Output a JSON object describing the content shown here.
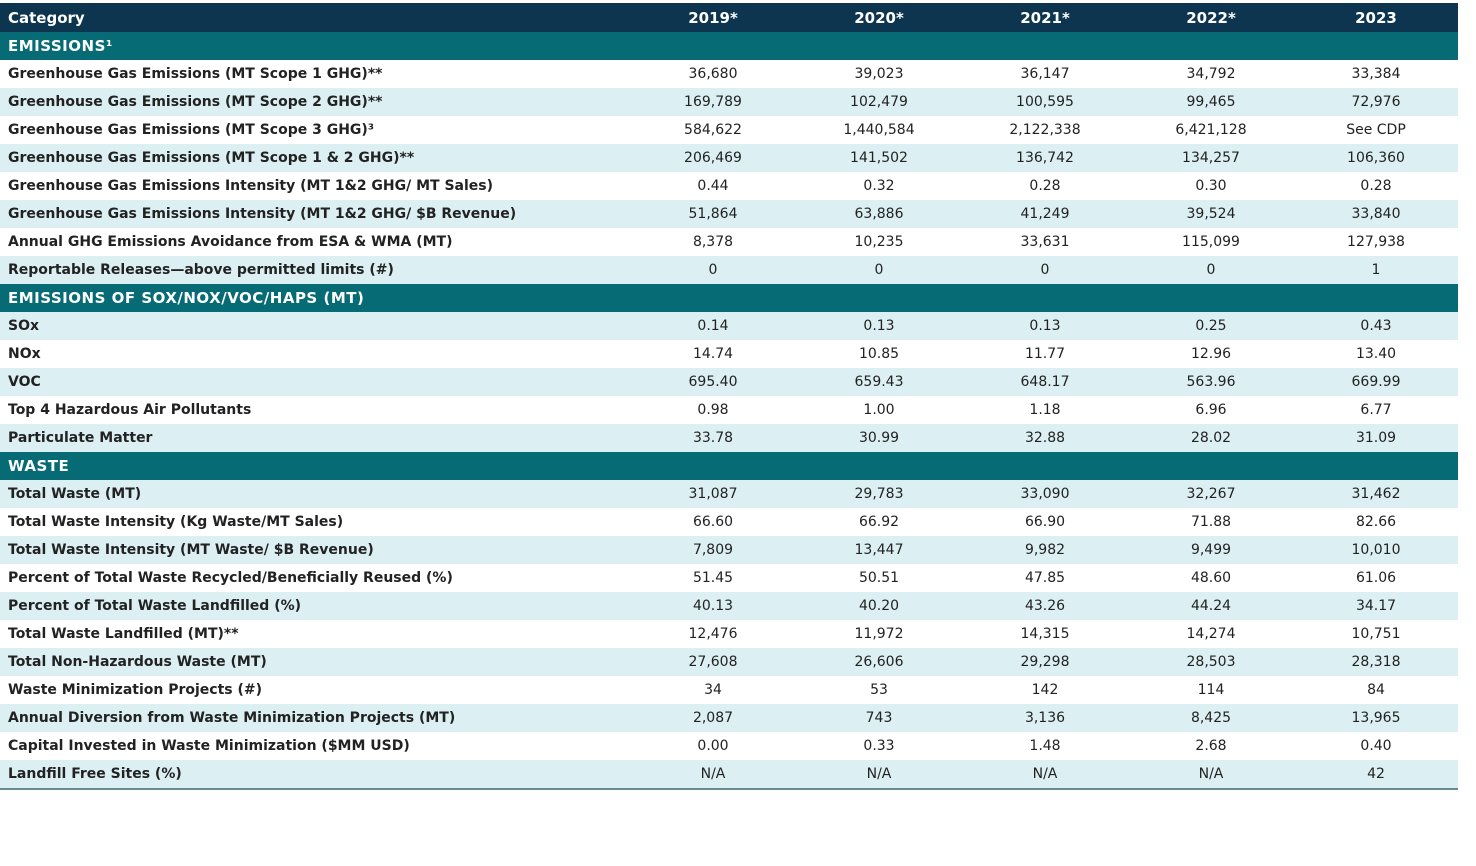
{
  "table": {
    "header": [
      "Category",
      "2019*",
      "2020*",
      "2021*",
      "2022*",
      "2023"
    ],
    "sections": [
      {
        "title": "EMISSIONS¹",
        "rows": [
          [
            "Greenhouse Gas Emissions (MT Scope 1 GHG)**",
            "36,680",
            "39,023",
            "36,147",
            "34,792",
            "33,384"
          ],
          [
            "Greenhouse Gas Emissions (MT Scope 2 GHG)**",
            "169,789",
            "102,479",
            "100,595",
            "99,465",
            "72,976"
          ],
          [
            "Greenhouse Gas Emissions (MT Scope 3 GHG)³",
            "584,622",
            "1,440,584",
            "2,122,338",
            "6,421,128",
            "See CDP"
          ],
          [
            "Greenhouse Gas Emissions (MT Scope 1 & 2 GHG)**",
            "206,469",
            "141,502",
            "136,742",
            "134,257",
            "106,360"
          ],
          [
            "Greenhouse Gas Emissions Intensity (MT 1&2 GHG/ MT Sales)",
            "0.44",
            "0.32",
            "0.28",
            "0.30",
            "0.28"
          ],
          [
            "Greenhouse Gas Emissions Intensity (MT 1&2 GHG/ $B Revenue)",
            "51,864",
            "63,886",
            "41,249",
            "39,524",
            "33,840"
          ],
          [
            "Annual GHG Emissions Avoidance from ESA & WMA (MT)",
            "8,378",
            "10,235",
            "33,631",
            "115,099",
            "127,938"
          ],
          [
            "Reportable Releases—above permitted limits (#)",
            "0",
            "0",
            "0",
            "0",
            "1"
          ]
        ]
      },
      {
        "title": "EMISSIONS OF SOX/NOX/VOC/HAPS (MT)",
        "rows": [
          [
            "SOx",
            "0.14",
            "0.13",
            "0.13",
            "0.25",
            "0.43"
          ],
          [
            "NOx",
            "14.74",
            "10.85",
            "11.77",
            "12.96",
            "13.40"
          ],
          [
            "VOC",
            "695.40",
            "659.43",
            "648.17",
            "563.96",
            "669.99"
          ],
          [
            "Top 4 Hazardous Air Pollutants",
            "0.98",
            "1.00",
            "1.18",
            "6.96",
            "6.77"
          ],
          [
            "Particulate Matter",
            "33.78",
            "30.99",
            "32.88",
            "28.02",
            "31.09"
          ]
        ]
      },
      {
        "title": "WASTE",
        "rows": [
          [
            "Total Waste (MT)",
            "31,087",
            "29,783",
            "33,090",
            "32,267",
            "31,462"
          ],
          [
            "Total Waste Intensity (Kg Waste/MT Sales)",
            "66.60",
            "66.92",
            "66.90",
            "71.88",
            "82.66"
          ],
          [
            "Total Waste Intensity (MT Waste/ $B Revenue)",
            "7,809",
            "13,447",
            "9,982",
            "9,499",
            "10,010"
          ],
          [
            "Percent of Total Waste Recycled/Beneficially Reused (%)",
            "51.45",
            "50.51",
            "47.85",
            "48.60",
            "61.06"
          ],
          [
            "Percent of Total Waste Landfilled (%)",
            "40.13",
            "40.20",
            "43.26",
            "44.24",
            "34.17"
          ],
          [
            "Total Waste Landfilled (MT)**",
            "12,476",
            "11,972",
            "14,315",
            "14,274",
            "10,751"
          ],
          [
            "Total Non-Hazardous Waste (MT)",
            "27,608",
            "26,606",
            "29,298",
            "28,503",
            "28,318"
          ],
          [
            "Waste Minimization Projects (#)",
            "34",
            "53",
            "142",
            "114",
            "84"
          ],
          [
            "Annual Diversion from Waste Minimization Projects (MT)",
            "2,087",
            "743",
            "3,136",
            "8,425",
            "13,965"
          ],
          [
            "Capital Invested in Waste Minimization ($MM USD)",
            "0.00",
            "0.33",
            "1.48",
            "2.68",
            "0.40"
          ],
          [
            "Landfill Free Sites (%)",
            "N/A",
            "N/A",
            "N/A",
            "N/A",
            "42"
          ]
        ]
      }
    ]
  }
}
